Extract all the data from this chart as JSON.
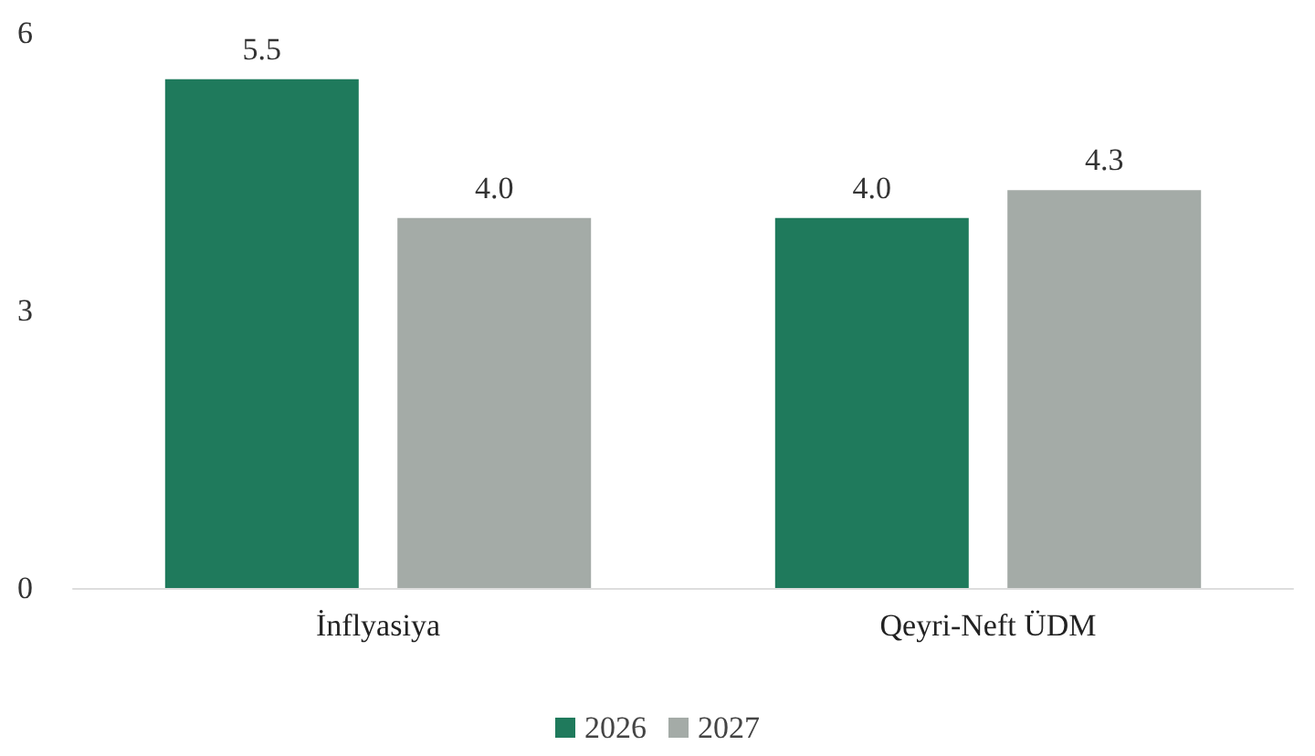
{
  "chart_data": {
    "type": "bar",
    "categories": [
      "İnflyasiya",
      "Qeyri-Neft ÜDM"
    ],
    "series": [
      {
        "name": "2026",
        "color": "#1f7a5c",
        "values": [
          5.5,
          4.0
        ],
        "value_labels": [
          "5.5",
          "4.0"
        ]
      },
      {
        "name": "2027",
        "color": "#a4aba7",
        "values": [
          4.0,
          4.3
        ],
        "value_labels": [
          "4.0",
          "4.3"
        ]
      }
    ],
    "ylim": [
      0,
      6
    ],
    "yticks": [
      0,
      3,
      6
    ],
    "grid": false,
    "legend": "bottom"
  }
}
